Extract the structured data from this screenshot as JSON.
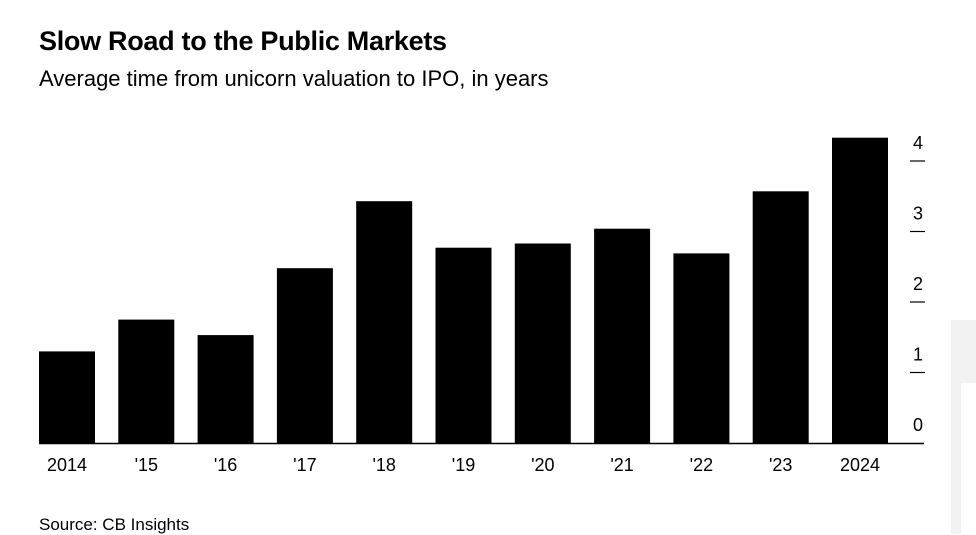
{
  "header": {
    "title": "Slow Road to the Public Markets",
    "subtitle": "Average time from unicorn valuation to IPO, in years"
  },
  "footer": {
    "source": "Source: CB Insights"
  },
  "colors": {
    "bar": "#000000",
    "background": "#ffffff",
    "text": "#000000"
  },
  "chart_data": {
    "type": "bar",
    "title": "Slow Road to the Public Markets",
    "subtitle": "Average time from unicorn valuation to IPO, in years",
    "categories": [
      "2014",
      "'15",
      "'16",
      "'17",
      "'18",
      "'19",
      "'20",
      "'21",
      "'22",
      "'23",
      "2024"
    ],
    "values": [
      1.3,
      1.75,
      1.53,
      2.48,
      3.43,
      2.77,
      2.83,
      3.04,
      2.69,
      3.57,
      4.33
    ],
    "ylim": [
      0,
      4.33
    ],
    "yticks": [
      0,
      1,
      2,
      3,
      4
    ],
    "y_axis_position": "right",
    "grid": false,
    "xlabel": "",
    "ylabel": ""
  }
}
